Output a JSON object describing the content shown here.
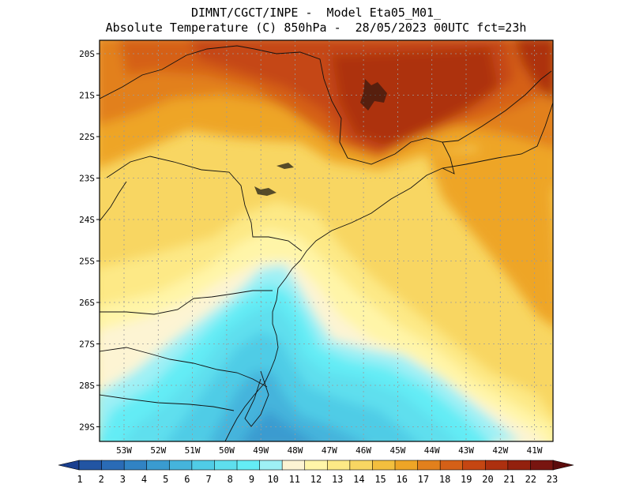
{
  "titles": {
    "line1": "DIMNT/CGCT/INPE -  Model Eta05_M01_",
    "line2": "Absolute Temperature (C) 850hPa -  28/05/2023 00UTC fct=23h"
  },
  "map": {
    "lat_ticks": [
      "20S",
      "21S",
      "22S",
      "23S",
      "24S",
      "25S",
      "26S",
      "27S",
      "28S",
      "29S"
    ],
    "lon_ticks": [
      "53W",
      "52W",
      "51W",
      "50W",
      "49W",
      "48W",
      "47W",
      "46W",
      "45W",
      "44W",
      "43W",
      "42W",
      "41W"
    ],
    "temperature_field_note": "Warm core 20-21C over SP interior, cold tongue 7-9C along SC/RS coast"
  },
  "colorbar": {
    "labels": [
      "1",
      "2",
      "3",
      "4",
      "5",
      "6",
      "7",
      "8",
      "9",
      "10",
      "11",
      "12",
      "13",
      "14",
      "15",
      "16",
      "17",
      "18",
      "19",
      "20",
      "21",
      "22",
      "23"
    ],
    "colors": [
      "#1a3f8f",
      "#2255a3",
      "#2a6bb6",
      "#3183c4",
      "#3a9bd0",
      "#45b4dc",
      "#50cce6",
      "#5edfee",
      "#64ecf5",
      "#9ef0f5",
      "#fdf4d3",
      "#fff5a8",
      "#fde986",
      "#f8d662",
      "#f3bf3e",
      "#eea526",
      "#e2801c",
      "#d56017",
      "#c54612",
      "#ad300f",
      "#93210e",
      "#781510",
      "#5c0c0c"
    ]
  }
}
